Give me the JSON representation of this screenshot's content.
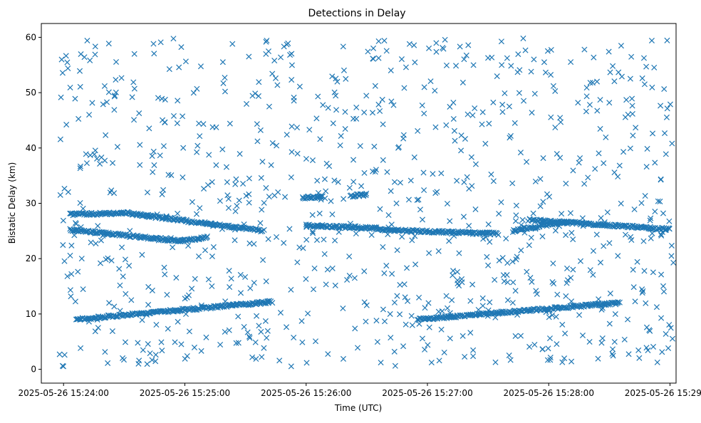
{
  "chart_data": {
    "type": "scatter",
    "title": "Detections in Delay",
    "xlabel": "Time (UTC)",
    "ylabel": "Bistatic Delay (km)",
    "x_unit": "time",
    "xlim": [
      "2025-05-26 15:23:49",
      "2025-05-26 15:29:03"
    ],
    "ylim": [
      -2.5,
      62.5
    ],
    "xticks": [
      "2025-05-26 15:24:00",
      "2025-05-26 15:25:00",
      "2025-05-26 15:26:00",
      "2025-05-26 15:27:00",
      "2025-05-26 15:28:00",
      "2025-05-26 15:29:00"
    ],
    "xtick_labels": [
      "2025-05-26 15:24:00",
      "2025-05-26 15:25:00",
      "2025-05-26 15:26:00",
      "2025-05-26 15:27:00",
      "2025-05-26 15:28:00",
      "2025-05-26 15:29:00"
    ],
    "yticks": [
      0,
      10,
      20,
      30,
      40,
      50,
      60
    ],
    "ytick_labels": [
      "0",
      "10",
      "20",
      "30",
      "40",
      "50",
      "60"
    ],
    "grid": false,
    "legend": false,
    "marker": "x",
    "color": "#1f77b4",
    "tracks": [
      {
        "start": [
          "2025-05-26 15:24:03",
          28.0
        ],
        "end": [
          "2025-05-26 15:24:32",
          28.2
        ]
      },
      {
        "start": [
          "2025-05-26 15:24:32",
          28.2
        ],
        "end": [
          "2025-05-26 15:25:39",
          25.0
        ]
      },
      {
        "start": [
          "2025-05-26 15:24:03",
          25.2
        ],
        "end": [
          "2025-05-26 15:24:58",
          23.2
        ]
      },
      {
        "start": [
          "2025-05-26 15:24:58",
          23.2
        ],
        "end": [
          "2025-05-26 15:25:11",
          23.8
        ]
      },
      {
        "start": [
          "2025-05-26 15:24:06",
          9.0
        ],
        "end": [
          "2025-05-26 15:25:43",
          12.2
        ]
      },
      {
        "start": [
          "2025-05-26 15:26:00",
          26.0
        ],
        "end": [
          "2025-05-26 15:26:35",
          25.5
        ]
      },
      {
        "start": [
          "2025-05-26 15:26:35",
          25.2
        ],
        "end": [
          "2025-05-26 15:27:35",
          24.5
        ]
      },
      {
        "start": [
          "2025-05-26 15:27:50",
          27.0
        ],
        "end": [
          "2025-05-26 15:29:00",
          25.3
        ]
      },
      {
        "start": [
          "2025-05-26 15:27:42",
          25.0
        ],
        "end": [
          "2025-05-26 15:28:10",
          26.8
        ]
      },
      {
        "start": [
          "2025-05-26 15:26:55",
          9.0
        ],
        "end": [
          "2025-05-26 15:28:35",
          12.0
        ]
      },
      {
        "start": [
          "2025-05-26 15:25:58",
          31.0
        ],
        "end": [
          "2025-05-26 15:26:08",
          31.2
        ]
      },
      {
        "start": [
          "2025-05-26 15:26:22",
          31.3
        ],
        "end": [
          "2025-05-26 15:26:30",
          31.6
        ]
      }
    ],
    "clutter": {
      "count": 920,
      "x_range": [
        "2025-05-26 15:23:58",
        "2025-05-26 15:29:02"
      ],
      "y_range": [
        0.5,
        60.0
      ]
    }
  }
}
